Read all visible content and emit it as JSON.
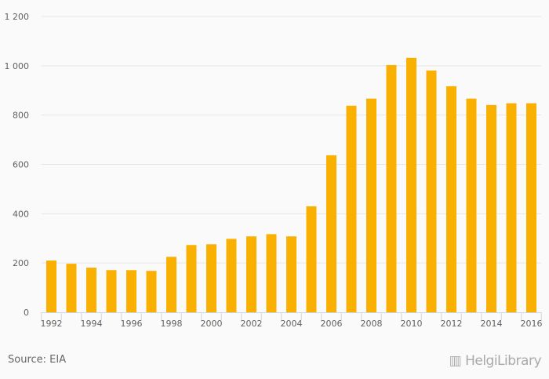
{
  "chart_data": {
    "type": "bar",
    "title": "",
    "xlabel": "",
    "ylabel": "",
    "ylim": [
      0,
      1200
    ],
    "yticks": [
      0,
      200,
      400,
      600,
      800,
      1000,
      1200
    ],
    "ytick_labels": [
      "0",
      "200",
      "400",
      "600",
      "800",
      "1 000",
      "1 200"
    ],
    "grid": true,
    "categories": [
      "1992",
      "1993",
      "1994",
      "1995",
      "1996",
      "1997",
      "1998",
      "1999",
      "2000",
      "2001",
      "2002",
      "2003",
      "2004",
      "2005",
      "2006",
      "2007",
      "2008",
      "2009",
      "2010",
      "2011",
      "2012",
      "2013",
      "2014",
      "2015",
      "2016"
    ],
    "values": [
      210,
      197,
      181,
      171,
      171,
      168,
      225,
      273,
      276,
      298,
      308,
      317,
      308,
      430,
      637,
      838,
      867,
      1003,
      1032,
      981,
      917,
      867,
      841,
      848,
      848
    ],
    "bar_color": "#f9b000"
  },
  "footer": {
    "source": "Source: EIA",
    "logo_text": "HelgiLibrary"
  }
}
